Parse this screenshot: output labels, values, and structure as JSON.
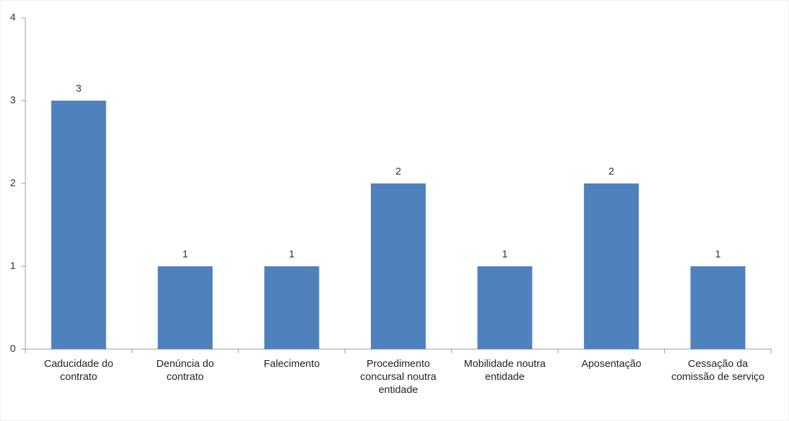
{
  "chart_data": {
    "type": "bar",
    "categories": [
      "Caducidade do contrato",
      "Denúncia do contrato",
      "Falecimento",
      "Procedimento concursal noutra entidade",
      "Mobilidade noutra entidade",
      "Aposentação",
      "Cessação da comissão de serviço"
    ],
    "values": [
      3,
      1,
      1,
      2,
      1,
      2,
      1
    ],
    "color": "#4f81bd",
    "ylim": [
      0,
      4
    ],
    "yticks": [
      0,
      1,
      2,
      3,
      4
    ],
    "grid": false
  }
}
